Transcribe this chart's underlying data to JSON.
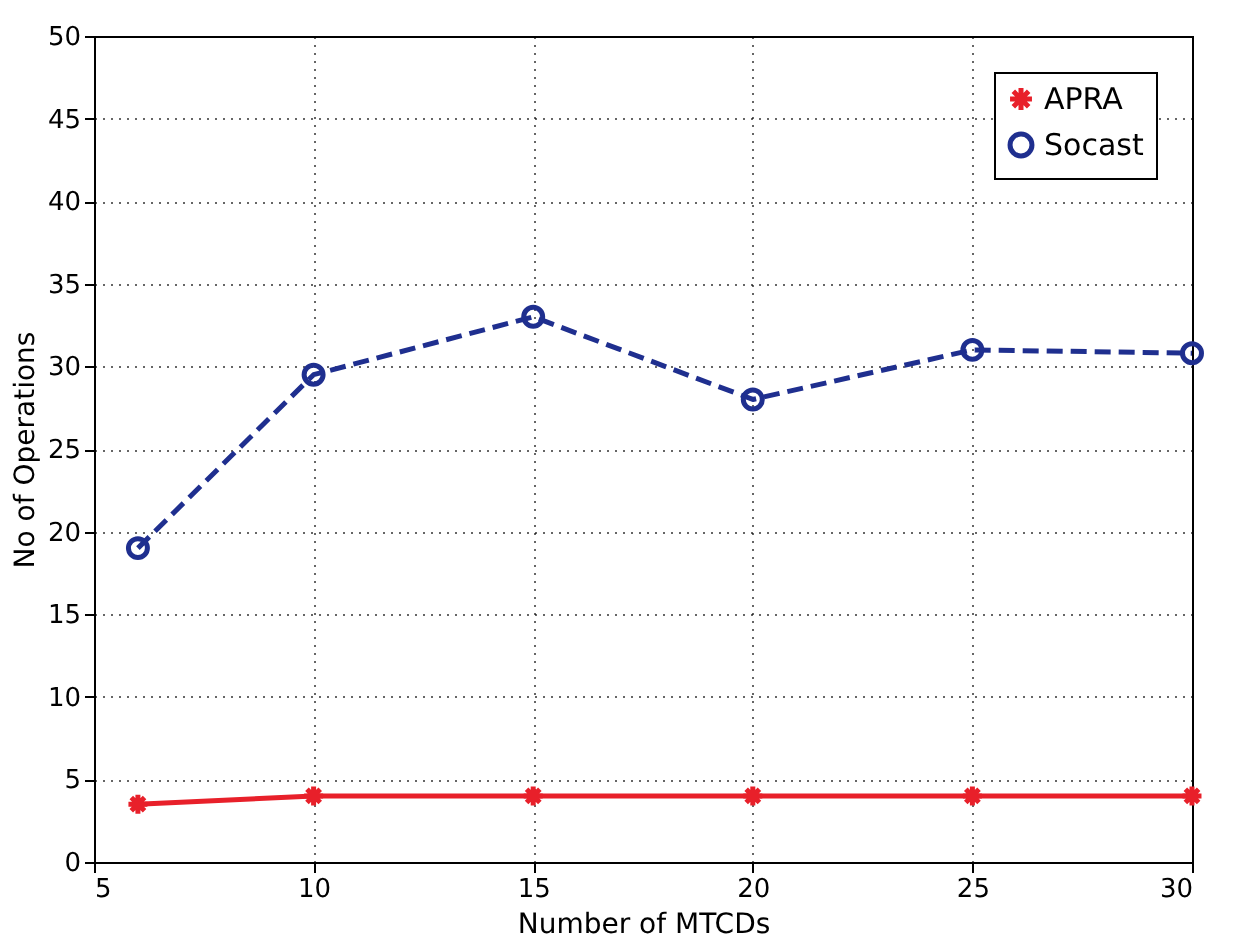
{
  "chart_data": {
    "type": "line",
    "xlabel": "Number of MTCDs",
    "ylabel": "No of Operations",
    "x": [
      6,
      10,
      15,
      20,
      25,
      30
    ],
    "series": [
      {
        "name": "APRA",
        "color": "#e8202a",
        "values": [
          3.5,
          4,
          4,
          4,
          4,
          4
        ],
        "marker": "cross",
        "line_style": "solid"
      },
      {
        "name": "Socast",
        "color": "#1f2f8f",
        "values": [
          19,
          29.5,
          33,
          28,
          31,
          30.8
        ],
        "marker": "circle",
        "line_style": "dashed"
      }
    ],
    "xlim": [
      5,
      30
    ],
    "xticks": [
      5,
      10,
      15,
      20,
      25,
      30
    ],
    "ylim": [
      0,
      50
    ],
    "yticks": [
      0,
      5,
      10,
      15,
      20,
      25,
      30,
      35,
      40,
      45,
      50
    ],
    "grid": true,
    "legend": "top right"
  }
}
